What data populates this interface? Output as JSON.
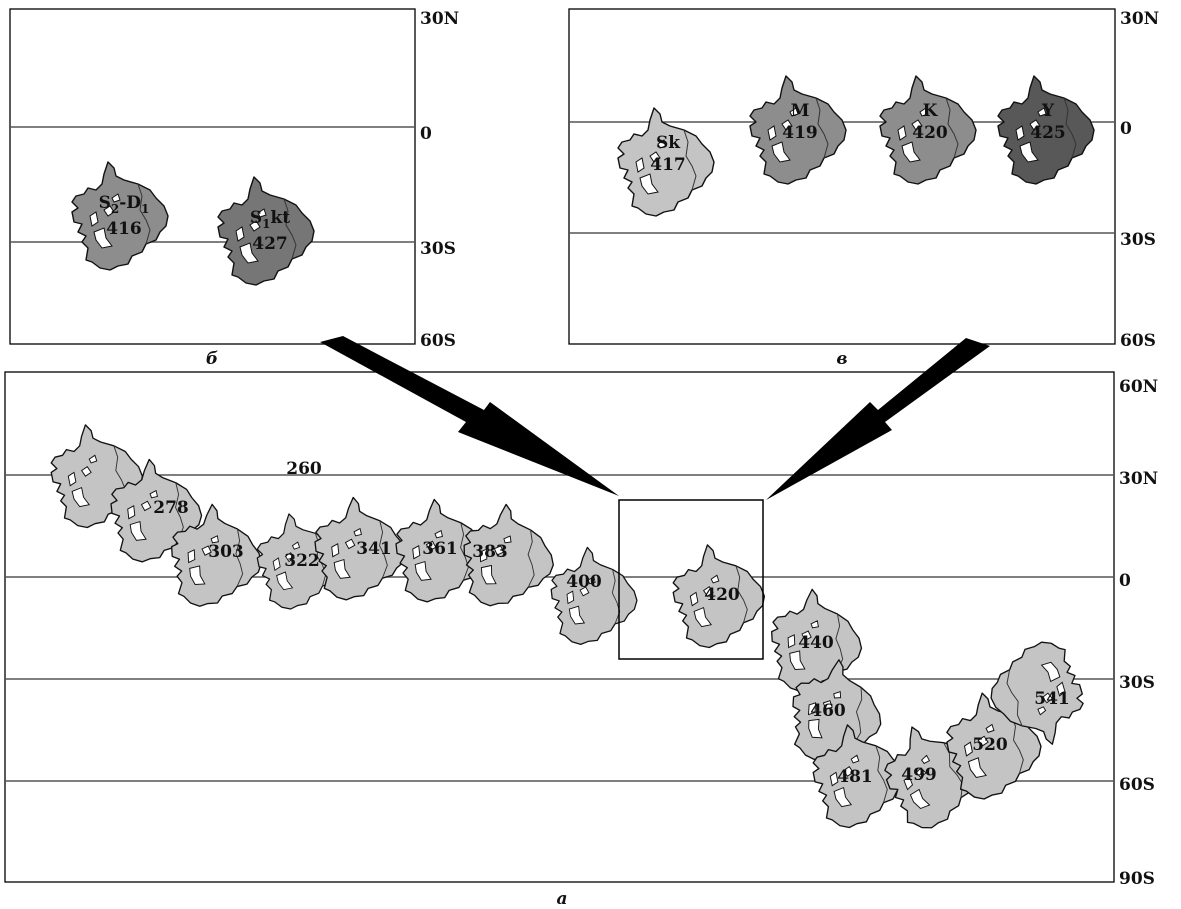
{
  "colors": {
    "light": "#c4c4c4",
    "medium": "#8d8d8d",
    "medium_dark": "#767676",
    "dark": "#585858"
  },
  "panel_a": {
    "caption": "а",
    "lat_labels": [
      "60N",
      "30N",
      "0",
      "30S",
      "60S",
      "90S"
    ],
    "blocks": [
      {
        "age": "260",
        "tone": "light"
      },
      {
        "age": "278",
        "tone": "light"
      },
      {
        "age": "303",
        "tone": "light"
      },
      {
        "age": "322",
        "tone": "light"
      },
      {
        "age": "341",
        "tone": "light"
      },
      {
        "age": "361",
        "tone": "light"
      },
      {
        "age": "383",
        "tone": "light"
      },
      {
        "age": "400",
        "tone": "light"
      },
      {
        "age": "420",
        "tone": "light"
      },
      {
        "age": "440",
        "tone": "light"
      },
      {
        "age": "460",
        "tone": "light"
      },
      {
        "age": "481",
        "tone": "light"
      },
      {
        "age": "499",
        "tone": "light"
      },
      {
        "age": "520",
        "tone": "light"
      },
      {
        "age": "541",
        "tone": "light"
      }
    ]
  },
  "panel_b": {
    "caption": "б",
    "lat_labels": [
      "30N",
      "0",
      "30S",
      "60S"
    ],
    "blocks": [
      {
        "label": "S",
        "sub1": "2",
        "mid": "-D",
        "sub2": "1",
        "age": "416",
        "tone": "medium"
      },
      {
        "label": "S",
        "sub1": "1",
        "mid": "kt",
        "sub2": "",
        "age": "427",
        "tone": "medium_dark"
      }
    ]
  },
  "panel_c": {
    "caption": "в",
    "lat_labels": [
      "30N",
      "0",
      "30S",
      "60S"
    ],
    "blocks": [
      {
        "label": "Sk",
        "age": "417",
        "tone": "light"
      },
      {
        "label": "M",
        "age": "419",
        "tone": "medium"
      },
      {
        "label": "K",
        "age": "420",
        "tone": "medium"
      },
      {
        "label": "Y",
        "age": "425",
        "tone": "dark"
      }
    ]
  }
}
